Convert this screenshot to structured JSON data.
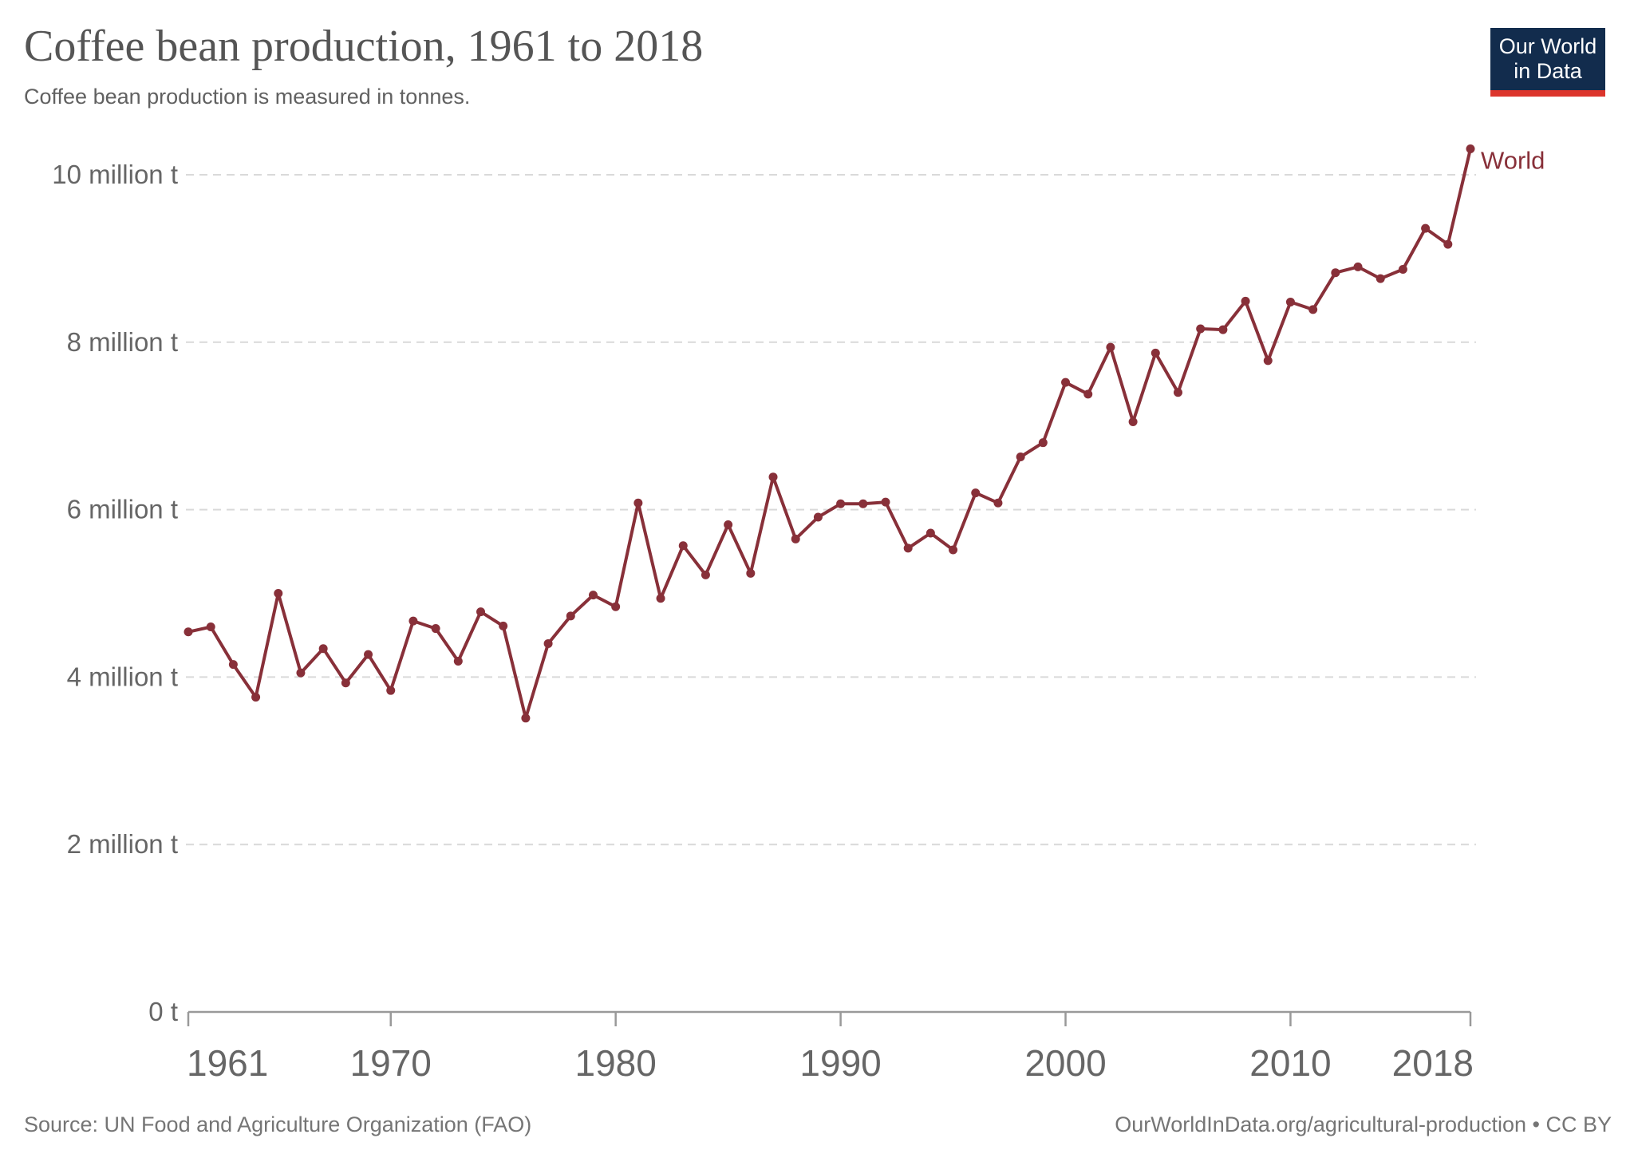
{
  "header": {
    "title": "Coffee bean production, 1961 to 2018",
    "subtitle": "Coffee bean production is measured in tonnes.",
    "logo": {
      "line1": "Our World",
      "line2": "in Data"
    }
  },
  "footer": {
    "source": "Source: UN Food and Agriculture Organization (FAO)",
    "attribution": "OurWorldInData.org/agricultural-production • CC BY"
  },
  "colors": {
    "series": "#883039",
    "gridline": "#d9d9d9",
    "axis": "#999999",
    "axis_text": "#666666",
    "title": "#555555",
    "subtitle": "#616161",
    "footer_text": "#757575",
    "logo_bg": "#122c4d",
    "logo_bar": "#dc352c"
  },
  "chart_data": {
    "type": "line",
    "title": "Coffee bean production, 1961 to 2018",
    "unit": "tonnes",
    "values_unit": "million tonnes",
    "grid": "horizontal dashed",
    "legend_position": "end-of-line label",
    "xlabel": "",
    "ylabel": "",
    "ylim": [
      0,
      10.5
    ],
    "xlim": [
      1961,
      2018
    ],
    "x_ticks": [
      1961,
      1970,
      1980,
      1990,
      2000,
      2010,
      2018
    ],
    "y_ticks": [
      {
        "value": 0,
        "label": "0 t"
      },
      {
        "value": 2,
        "label": "2 million t"
      },
      {
        "value": 4,
        "label": "4 million t"
      },
      {
        "value": 6,
        "label": "6 million t"
      },
      {
        "value": 8,
        "label": "8 million t"
      },
      {
        "value": 10,
        "label": "10 million t"
      }
    ],
    "x": [
      1961,
      1962,
      1963,
      1964,
      1965,
      1966,
      1967,
      1968,
      1969,
      1970,
      1971,
      1972,
      1973,
      1974,
      1975,
      1976,
      1977,
      1978,
      1979,
      1980,
      1981,
      1982,
      1983,
      1984,
      1985,
      1986,
      1987,
      1988,
      1989,
      1990,
      1991,
      1992,
      1993,
      1994,
      1995,
      1996,
      1997,
      1998,
      1999,
      2000,
      2001,
      2002,
      2003,
      2004,
      2005,
      2006,
      2007,
      2008,
      2009,
      2010,
      2011,
      2012,
      2013,
      2014,
      2015,
      2016,
      2017,
      2018
    ],
    "series": [
      {
        "name": "World",
        "values": [
          4.54,
          4.6,
          4.15,
          3.76,
          5.0,
          4.05,
          4.34,
          3.93,
          4.27,
          3.84,
          4.67,
          4.58,
          4.19,
          4.78,
          4.61,
          3.51,
          4.4,
          4.73,
          4.98,
          4.84,
          6.08,
          4.94,
          5.57,
          5.22,
          5.82,
          5.24,
          6.39,
          5.65,
          5.91,
          6.07,
          6.07,
          6.09,
          5.54,
          5.72,
          5.52,
          6.2,
          6.08,
          6.63,
          6.8,
          7.52,
          7.38,
          7.94,
          7.05,
          7.87,
          7.4,
          8.16,
          8.15,
          8.49,
          7.78,
          8.48,
          8.39,
          8.83,
          8.9,
          8.76,
          8.87,
          9.36,
          9.17,
          10.31
        ]
      }
    ]
  }
}
